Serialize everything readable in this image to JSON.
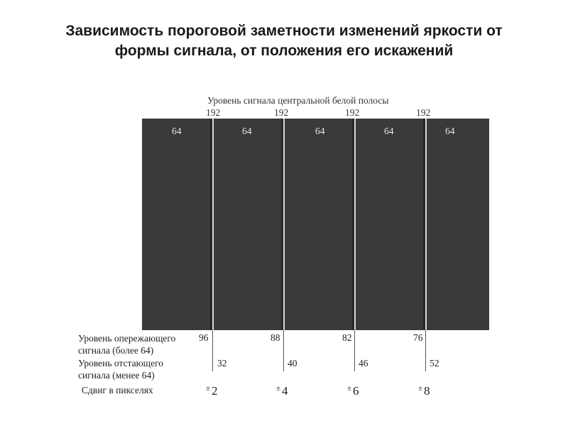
{
  "title": {
    "line1": "Зависимость пороговой заметности изменений яркости от",
    "line2": "формы сигнала, от положения его искажений"
  },
  "diagram": {
    "top_label": "Уровень сигнала центральной белой полосы",
    "center_level": "192",
    "background_level": "64",
    "row_labels": {
      "leading_line1": "Уровень опережающего",
      "leading_line2": "сигнала (более 64)",
      "lagging_line1": "Уровень отстающего",
      "lagging_line2": "сигнала (менее 64)",
      "shift": "Сдвиг в пикселях"
    },
    "groups": [
      {
        "center": "192",
        "leading": "96",
        "lagging": "32",
        "shift_sign": "±",
        "shift": "2"
      },
      {
        "center": "192",
        "leading": "88",
        "lagging": "40",
        "shift_sign": "±",
        "shift": "4"
      },
      {
        "center": "192",
        "leading": "82",
        "lagging": "46",
        "shift_sign": "±",
        "shift": "6"
      },
      {
        "center": "192",
        "leading": "76",
        "lagging": "52",
        "shift_sign": "±",
        "shift": "8"
      }
    ],
    "colors": {
      "panel": "#3a3a3a",
      "bright_stripe": "#d8d8d8",
      "dark_stripe": "#262626",
      "text": "#222222"
    }
  }
}
